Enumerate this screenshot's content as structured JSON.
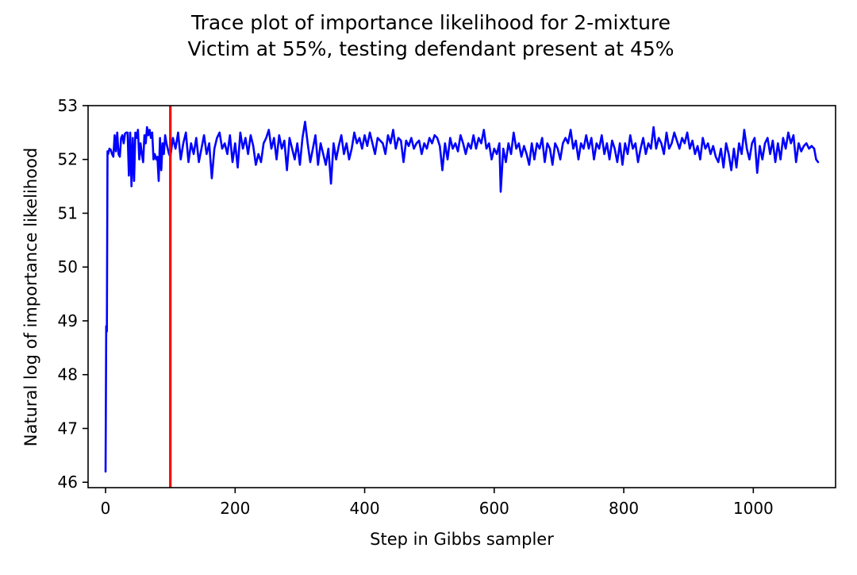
{
  "chart_data": {
    "type": "line",
    "title": [
      "Trace plot of importance likelihood for 2-mixture",
      "Victim at 55%, testing defendant present at 45%"
    ],
    "xlabel": "Step in Gibbs sampler",
    "ylabel": "Natural log of importance likelihood",
    "xlim": [
      -27,
      1127
    ],
    "ylim": [
      45.9,
      53.0
    ],
    "xticks": [
      0,
      200,
      400,
      600,
      800,
      1000
    ],
    "yticks": [
      46,
      47,
      48,
      49,
      50,
      51,
      52,
      53
    ],
    "grid": false,
    "legend": "none",
    "series": [
      {
        "color": "#0000ff",
        "points": [
          [
            0,
            46.2
          ],
          [
            1,
            48.9
          ],
          [
            2,
            48.8
          ],
          [
            3,
            52.15
          ],
          [
            4,
            52.1
          ],
          [
            6,
            52.2
          ],
          [
            8,
            52.18
          ],
          [
            10,
            52.1
          ],
          [
            12,
            52.05
          ],
          [
            14,
            52.45
          ],
          [
            16,
            52.15
          ],
          [
            18,
            52.5
          ],
          [
            20,
            52.1
          ],
          [
            22,
            52.05
          ],
          [
            24,
            52.4
          ],
          [
            26,
            52.45
          ],
          [
            28,
            52.3
          ],
          [
            30,
            52.48
          ],
          [
            32,
            52.5
          ],
          [
            34,
            52.5
          ],
          [
            36,
            51.7
          ],
          [
            38,
            52.5
          ],
          [
            40,
            51.5
          ],
          [
            42,
            52.4
          ],
          [
            44,
            51.6
          ],
          [
            46,
            52.5
          ],
          [
            48,
            52.4
          ],
          [
            50,
            52.55
          ],
          [
            52,
            52.0
          ],
          [
            54,
            52.3
          ],
          [
            56,
            52.1
          ],
          [
            58,
            51.95
          ],
          [
            60,
            52.45
          ],
          [
            62,
            52.3
          ],
          [
            64,
            52.6
          ],
          [
            66,
            52.45
          ],
          [
            68,
            52.55
          ],
          [
            70,
            52.4
          ],
          [
            72,
            52.5
          ],
          [
            74,
            52.0
          ],
          [
            76,
            52.1
          ],
          [
            78,
            52.0
          ],
          [
            80,
            52.05
          ],
          [
            82,
            51.6
          ],
          [
            84,
            52.4
          ],
          [
            86,
            51.8
          ],
          [
            88,
            52.3
          ],
          [
            90,
            52.1
          ],
          [
            92,
            52.45
          ],
          [
            94,
            52.3
          ],
          [
            96,
            52.2
          ],
          [
            98,
            52.1
          ],
          [
            100,
            52.05
          ],
          [
            104,
            52.4
          ],
          [
            108,
            52.2
          ],
          [
            112,
            52.5
          ],
          [
            116,
            52.0
          ],
          [
            120,
            52.3
          ],
          [
            124,
            52.5
          ],
          [
            128,
            51.95
          ],
          [
            132,
            52.3
          ],
          [
            136,
            52.1
          ],
          [
            140,
            52.4
          ],
          [
            144,
            51.95
          ],
          [
            148,
            52.2
          ],
          [
            152,
            52.45
          ],
          [
            156,
            52.1
          ],
          [
            160,
            52.3
          ],
          [
            164,
            51.65
          ],
          [
            168,
            52.2
          ],
          [
            172,
            52.4
          ],
          [
            176,
            52.5
          ],
          [
            180,
            52.2
          ],
          [
            184,
            52.3
          ],
          [
            188,
            52.1
          ],
          [
            192,
            52.45
          ],
          [
            196,
            51.95
          ],
          [
            200,
            52.3
          ],
          [
            204,
            51.85
          ],
          [
            208,
            52.5
          ],
          [
            212,
            52.2
          ],
          [
            216,
            52.4
          ],
          [
            220,
            52.1
          ],
          [
            224,
            52.45
          ],
          [
            228,
            52.25
          ],
          [
            232,
            51.9
          ],
          [
            236,
            52.1
          ],
          [
            240,
            51.95
          ],
          [
            244,
            52.3
          ],
          [
            248,
            52.4
          ],
          [
            252,
            52.55
          ],
          [
            256,
            52.2
          ],
          [
            260,
            52.4
          ],
          [
            264,
            52.0
          ],
          [
            268,
            52.45
          ],
          [
            272,
            52.2
          ],
          [
            276,
            52.35
          ],
          [
            280,
            51.8
          ],
          [
            284,
            52.4
          ],
          [
            288,
            52.2
          ],
          [
            292,
            52.0
          ],
          [
            296,
            52.3
          ],
          [
            300,
            51.9
          ],
          [
            304,
            52.4
          ],
          [
            308,
            52.7
          ],
          [
            312,
            52.3
          ],
          [
            316,
            51.95
          ],
          [
            320,
            52.2
          ],
          [
            324,
            52.45
          ],
          [
            328,
            51.9
          ],
          [
            332,
            52.3
          ],
          [
            336,
            52.1
          ],
          [
            340,
            51.9
          ],
          [
            344,
            52.2
          ],
          [
            348,
            51.55
          ],
          [
            352,
            52.3
          ],
          [
            356,
            52.0
          ],
          [
            360,
            52.25
          ],
          [
            364,
            52.45
          ],
          [
            368,
            52.1
          ],
          [
            372,
            52.3
          ],
          [
            376,
            52.0
          ],
          [
            380,
            52.2
          ],
          [
            384,
            52.5
          ],
          [
            388,
            52.3
          ],
          [
            392,
            52.4
          ],
          [
            396,
            52.2
          ],
          [
            400,
            52.45
          ],
          [
            404,
            52.25
          ],
          [
            408,
            52.5
          ],
          [
            412,
            52.3
          ],
          [
            416,
            52.1
          ],
          [
            420,
            52.4
          ],
          [
            424,
            52.35
          ],
          [
            428,
            52.3
          ],
          [
            432,
            52.1
          ],
          [
            436,
            52.45
          ],
          [
            440,
            52.3
          ],
          [
            444,
            52.55
          ],
          [
            448,
            52.2
          ],
          [
            452,
            52.4
          ],
          [
            456,
            52.35
          ],
          [
            460,
            51.95
          ],
          [
            464,
            52.35
          ],
          [
            468,
            52.25
          ],
          [
            472,
            52.4
          ],
          [
            476,
            52.2
          ],
          [
            480,
            52.3
          ],
          [
            484,
            52.35
          ],
          [
            488,
            52.1
          ],
          [
            492,
            52.3
          ],
          [
            496,
            52.2
          ],
          [
            500,
            52.4
          ],
          [
            504,
            52.3
          ],
          [
            508,
            52.45
          ],
          [
            512,
            52.4
          ],
          [
            516,
            52.25
          ],
          [
            520,
            51.8
          ],
          [
            524,
            52.3
          ],
          [
            528,
            52.0
          ],
          [
            532,
            52.4
          ],
          [
            536,
            52.2
          ],
          [
            540,
            52.3
          ],
          [
            544,
            52.15
          ],
          [
            548,
            52.45
          ],
          [
            552,
            52.3
          ],
          [
            556,
            52.1
          ],
          [
            560,
            52.3
          ],
          [
            564,
            52.2
          ],
          [
            568,
            52.45
          ],
          [
            572,
            52.2
          ],
          [
            576,
            52.4
          ],
          [
            580,
            52.3
          ],
          [
            584,
            52.55
          ],
          [
            588,
            52.2
          ],
          [
            592,
            52.3
          ],
          [
            596,
            52.0
          ],
          [
            600,
            52.2
          ],
          [
            604,
            52.1
          ],
          [
            608,
            52.3
          ],
          [
            610,
            51.4
          ],
          [
            614,
            52.2
          ],
          [
            618,
            51.95
          ],
          [
            622,
            52.3
          ],
          [
            626,
            52.1
          ],
          [
            630,
            52.5
          ],
          [
            634,
            52.2
          ],
          [
            638,
            52.3
          ],
          [
            642,
            52.05
          ],
          [
            646,
            52.25
          ],
          [
            650,
            52.1
          ],
          [
            654,
            51.9
          ],
          [
            658,
            52.3
          ],
          [
            662,
            52.0
          ],
          [
            666,
            52.3
          ],
          [
            670,
            52.2
          ],
          [
            674,
            52.4
          ],
          [
            678,
            51.95
          ],
          [
            682,
            52.3
          ],
          [
            686,
            52.2
          ],
          [
            690,
            51.9
          ],
          [
            694,
            52.3
          ],
          [
            698,
            52.2
          ],
          [
            702,
            52.0
          ],
          [
            706,
            52.3
          ],
          [
            710,
            52.4
          ],
          [
            714,
            52.3
          ],
          [
            718,
            52.55
          ],
          [
            722,
            52.2
          ],
          [
            726,
            52.35
          ],
          [
            730,
            52.0
          ],
          [
            734,
            52.3
          ],
          [
            738,
            52.2
          ],
          [
            742,
            52.45
          ],
          [
            746,
            52.2
          ],
          [
            750,
            52.4
          ],
          [
            754,
            52.0
          ],
          [
            758,
            52.3
          ],
          [
            762,
            52.2
          ],
          [
            766,
            52.45
          ],
          [
            770,
            52.1
          ],
          [
            774,
            52.3
          ],
          [
            778,
            52.0
          ],
          [
            782,
            52.35
          ],
          [
            786,
            52.2
          ],
          [
            790,
            51.95
          ],
          [
            794,
            52.3
          ],
          [
            798,
            51.9
          ],
          [
            802,
            52.3
          ],
          [
            806,
            52.1
          ],
          [
            810,
            52.45
          ],
          [
            814,
            52.2
          ],
          [
            818,
            52.3
          ],
          [
            822,
            51.95
          ],
          [
            826,
            52.2
          ],
          [
            830,
            52.4
          ],
          [
            834,
            52.1
          ],
          [
            838,
            52.3
          ],
          [
            842,
            52.2
          ],
          [
            846,
            52.6
          ],
          [
            850,
            52.2
          ],
          [
            854,
            52.4
          ],
          [
            858,
            52.3
          ],
          [
            862,
            52.1
          ],
          [
            866,
            52.5
          ],
          [
            870,
            52.2
          ],
          [
            874,
            52.3
          ],
          [
            878,
            52.5
          ],
          [
            882,
            52.35
          ],
          [
            886,
            52.2
          ],
          [
            890,
            52.4
          ],
          [
            894,
            52.3
          ],
          [
            898,
            52.5
          ],
          [
            902,
            52.2
          ],
          [
            906,
            52.35
          ],
          [
            910,
            52.1
          ],
          [
            914,
            52.25
          ],
          [
            918,
            52.0
          ],
          [
            922,
            52.4
          ],
          [
            926,
            52.2
          ],
          [
            930,
            52.3
          ],
          [
            934,
            52.1
          ],
          [
            938,
            52.25
          ],
          [
            942,
            52.05
          ],
          [
            946,
            51.95
          ],
          [
            950,
            52.2
          ],
          [
            954,
            51.85
          ],
          [
            958,
            52.3
          ],
          [
            962,
            52.1
          ],
          [
            966,
            51.8
          ],
          [
            970,
            52.2
          ],
          [
            974,
            51.85
          ],
          [
            978,
            52.3
          ],
          [
            982,
            52.1
          ],
          [
            986,
            52.55
          ],
          [
            990,
            52.2
          ],
          [
            994,
            52.0
          ],
          [
            998,
            52.3
          ],
          [
            1002,
            52.4
          ],
          [
            1006,
            51.75
          ],
          [
            1010,
            52.25
          ],
          [
            1014,
            52.0
          ],
          [
            1018,
            52.3
          ],
          [
            1022,
            52.4
          ],
          [
            1026,
            52.1
          ],
          [
            1030,
            52.35
          ],
          [
            1034,
            51.95
          ],
          [
            1038,
            52.3
          ],
          [
            1042,
            52.0
          ],
          [
            1046,
            52.4
          ],
          [
            1050,
            52.2
          ],
          [
            1054,
            52.5
          ],
          [
            1058,
            52.3
          ],
          [
            1062,
            52.45
          ],
          [
            1066,
            51.95
          ],
          [
            1070,
            52.3
          ],
          [
            1074,
            52.15
          ],
          [
            1078,
            52.25
          ],
          [
            1082,
            52.3
          ],
          [
            1086,
            52.2
          ],
          [
            1090,
            52.25
          ],
          [
            1094,
            52.2
          ],
          [
            1097,
            52.0
          ],
          [
            1100,
            51.95
          ]
        ]
      }
    ],
    "vlines": [
      {
        "x": 100,
        "color": "#ff0000"
      }
    ]
  }
}
